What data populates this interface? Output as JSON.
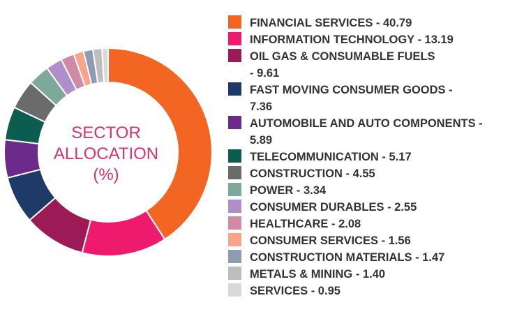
{
  "chart_data": {
    "type": "pie",
    "donut": true,
    "title_lines": [
      "SECTOR",
      "ALLOCATION",
      "(%)"
    ],
    "legend_position": "right",
    "slices": [
      {
        "label": "FINANCIAL SERVICES",
        "value_text": "40.79",
        "value": 40.79,
        "color": "#f26522"
      },
      {
        "label": "INFORMATION TECHNOLOGY",
        "value_text": "13.19",
        "value": 13.19,
        "color": "#ed1a6e"
      },
      {
        "label": "OIL GAS & CONSUMABLE FUELS",
        "value_text": "9.61",
        "value": 9.61,
        "color": "#9c1a55"
      },
      {
        "label": "FAST MOVING CONSUMER GOODS",
        "value_text": "7.36",
        "value": 7.36,
        "color": "#1e3a66"
      },
      {
        "label": "AUTOMOBILE AND AUTO COMPONENTS",
        "value_text": "5.89",
        "value": 5.89,
        "color": "#6c2a8a"
      },
      {
        "label": "TELECOMMUNICATION",
        "value_text": "5.17",
        "value": 5.17,
        "color": "#0b5e4f"
      },
      {
        "label": "CONSTRUCTION",
        "value_text": "4.55",
        "value": 4.55,
        "color": "#6b6b6b"
      },
      {
        "label": "POWER",
        "value_text": "3.34",
        "value": 3.34,
        "color": "#7fa89c"
      },
      {
        "label": "CONSUMER DURABLES",
        "value_text": "2.55",
        "value": 2.55,
        "color": "#b08ec9"
      },
      {
        "label": "HEALTHCARE",
        "value_text": "2.08",
        "value": 2.08,
        "color": "#d08aa6"
      },
      {
        "label": "CONSUMER SERVICES",
        "value_text": "1.56",
        "value": 1.56,
        "color": "#f7a48a"
      },
      {
        "label": "CONSTRUCTION MATERIALS",
        "value_text": "1.47",
        "value": 1.47,
        "color": "#8f9ab3"
      },
      {
        "label": "METALS & MINING",
        "value_text": "1.40",
        "value": 1.4,
        "color": "#bdbdbd"
      },
      {
        "label": "SERVICES",
        "value_text": "0.95",
        "value": 0.95,
        "color": "#d9d9d9"
      }
    ]
  }
}
